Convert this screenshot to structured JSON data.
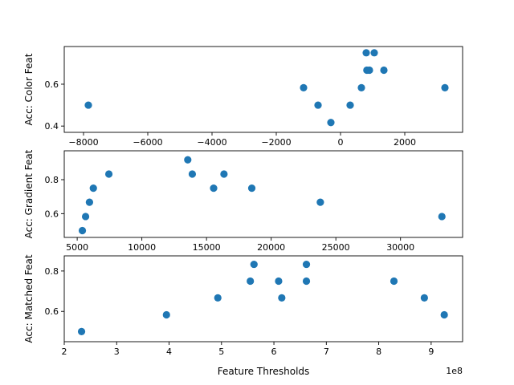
{
  "chart_data": [
    {
      "type": "scatter",
      "ylabel": "Acc: Color Feat",
      "xlabel": "",
      "color": "#1f77b4",
      "xlim": [
        -8600,
        3800
      ],
      "ylim": [
        0.37,
        0.78
      ],
      "xticks": [
        -8000,
        -6000,
        -4000,
        -2000,
        0,
        2000
      ],
      "xtick_labels": [
        "−8000",
        "−6000",
        "−4000",
        "−2000",
        "0",
        "2000"
      ],
      "yticks": [
        0.4,
        0.6
      ],
      "ytick_labels": [
        "0.4",
        "0.6"
      ],
      "points": [
        {
          "x": -7850,
          "y": 0.5
        },
        {
          "x": -1150,
          "y": 0.583
        },
        {
          "x": -700,
          "y": 0.5
        },
        {
          "x": -300,
          "y": 0.417
        },
        {
          "x": 300,
          "y": 0.5
        },
        {
          "x": 650,
          "y": 0.583
        },
        {
          "x": 800,
          "y": 0.75
        },
        {
          "x": 820,
          "y": 0.667
        },
        {
          "x": 900,
          "y": 0.667
        },
        {
          "x": 1050,
          "y": 0.75
        },
        {
          "x": 1350,
          "y": 0.667
        },
        {
          "x": 3250,
          "y": 0.583
        }
      ]
    },
    {
      "type": "scatter",
      "ylabel": "Acc: Gradient Feat",
      "xlabel": "",
      "color": "#1f77b4",
      "xlim": [
        4000,
        34800
      ],
      "ylim": [
        0.46,
        0.97
      ],
      "xticks": [
        5000,
        10000,
        15000,
        20000,
        25000,
        30000
      ],
      "xtick_labels": [
        "5000",
        "10000",
        "15000",
        "20000",
        "25000",
        "30000"
      ],
      "yticks": [
        0.6,
        0.8
      ],
      "ytick_labels": [
        "0.6",
        "0.8"
      ],
      "points": [
        {
          "x": 5400,
          "y": 0.5
        },
        {
          "x": 5650,
          "y": 0.583
        },
        {
          "x": 5950,
          "y": 0.667
        },
        {
          "x": 6250,
          "y": 0.75
        },
        {
          "x": 7450,
          "y": 0.833
        },
        {
          "x": 13550,
          "y": 0.917
        },
        {
          "x": 13900,
          "y": 0.833
        },
        {
          "x": 15550,
          "y": 0.75
        },
        {
          "x": 16350,
          "y": 0.833
        },
        {
          "x": 18500,
          "y": 0.75
        },
        {
          "x": 23800,
          "y": 0.667
        },
        {
          "x": 33200,
          "y": 0.583
        }
      ]
    },
    {
      "type": "scatter",
      "ylabel": "Acc: Matched Feat",
      "xlabel": "Feature Thresholds",
      "x_offset_label": "1e8",
      "color": "#1f77b4",
      "xlim": [
        2.0,
        9.6
      ],
      "ylim": [
        0.45,
        0.875
      ],
      "xticks": [
        2,
        3,
        4,
        5,
        6,
        7,
        8,
        9
      ],
      "xtick_labels": [
        "2",
        "3",
        "4",
        "5",
        "6",
        "7",
        "8",
        "9"
      ],
      "yticks": [
        0.6,
        0.8
      ],
      "ytick_labels": [
        "0.6",
        "0.8"
      ],
      "points": [
        {
          "x": 2.33,
          "y": 0.5
        },
        {
          "x": 3.95,
          "y": 0.583
        },
        {
          "x": 4.93,
          "y": 0.667
        },
        {
          "x": 5.55,
          "y": 0.75
        },
        {
          "x": 5.62,
          "y": 0.833
        },
        {
          "x": 6.09,
          "y": 0.75
        },
        {
          "x": 6.15,
          "y": 0.667
        },
        {
          "x": 6.62,
          "y": 0.833
        },
        {
          "x": 6.62,
          "y": 0.75
        },
        {
          "x": 8.29,
          "y": 0.75
        },
        {
          "x": 8.87,
          "y": 0.667
        },
        {
          "x": 9.25,
          "y": 0.583
        }
      ]
    }
  ]
}
